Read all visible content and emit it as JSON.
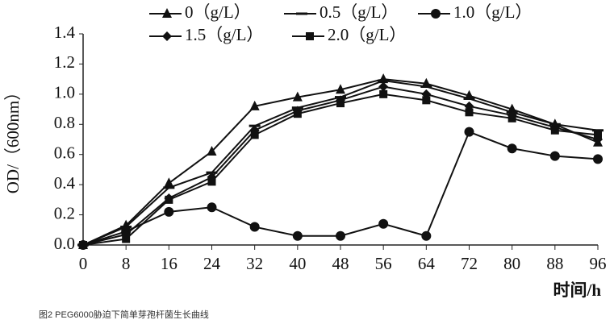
{
  "chart_data": {
    "type": "line",
    "caption": "图2 PEG6000胁迫下简单芽孢杆菌生长曲线",
    "x_label": "时间/h",
    "y_label": "OD/（600nm）",
    "x": [
      0,
      8,
      16,
      24,
      32,
      40,
      48,
      56,
      64,
      72,
      80,
      88,
      96
    ],
    "xlim": [
      0,
      96
    ],
    "xticks": [
      0,
      8,
      16,
      24,
      32,
      40,
      48,
      56,
      64,
      72,
      80,
      88,
      96
    ],
    "ylim": [
      0,
      1.4
    ],
    "yticks": [
      {
        "value": 0,
        "label": "0.0"
      },
      0.2,
      0.4,
      0.6,
      0.8,
      {
        "value": 1,
        "label": "1.0"
      },
      1.2,
      1.4
    ],
    "grid": false,
    "series": [
      {
        "name": "0（g/L）",
        "color": "#111111",
        "marker": "triangle",
        "values": [
          0,
          0.13,
          0.41,
          0.62,
          0.92,
          0.98,
          1.03,
          1.1,
          1.07,
          0.99,
          0.9,
          0.8,
          0.68
        ]
      },
      {
        "name": "0.5（g/L）",
        "color": "#111111",
        "marker": "dash",
        "values": [
          0,
          0.12,
          0.38,
          0.48,
          0.79,
          0.91,
          0.98,
          1.09,
          1.05,
          0.97,
          0.88,
          0.8,
          0.76
        ]
      },
      {
        "name": "1.0（g/L）",
        "color": "#111111",
        "marker": "circle",
        "values": [
          0,
          0.09,
          0.22,
          0.25,
          0.12,
          0.06,
          0.06,
          0.14,
          0.06,
          0.75,
          0.64,
          0.59,
          0.57
        ]
      },
      {
        "name": "1.5（g/L）",
        "color": "#111111",
        "marker": "diamond",
        "values": [
          0,
          0.07,
          0.31,
          0.45,
          0.76,
          0.89,
          0.96,
          1.05,
          1.0,
          0.92,
          0.86,
          0.78,
          0.7
        ]
      },
      {
        "name": "2.0（g/L）",
        "color": "#111111",
        "marker": "square",
        "values": [
          0,
          0.04,
          0.3,
          0.42,
          0.73,
          0.87,
          0.94,
          1.0,
          0.96,
          0.88,
          0.84,
          0.76,
          0.73
        ]
      }
    ]
  }
}
